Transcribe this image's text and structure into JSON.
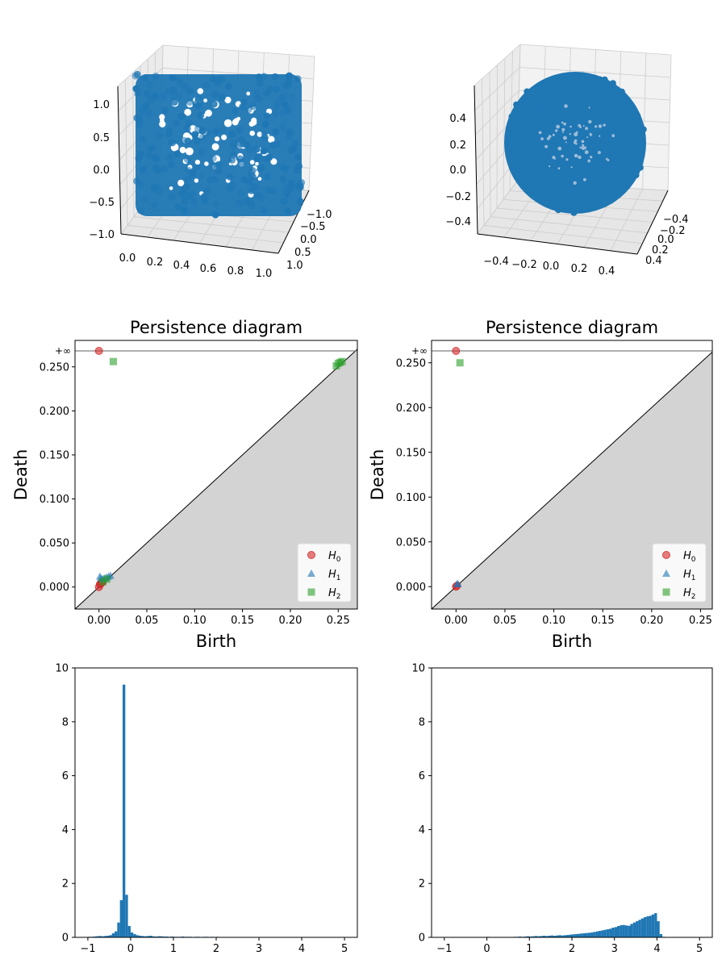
{
  "figure": {
    "colors": {
      "scatter": "#1f77b4",
      "h0": "#d62728",
      "h1": "#1f77b4",
      "h2": "#2ca02c",
      "fill": "#d3d3d3",
      "hist": "#1f77b4",
      "grid": "#cccccc",
      "pane": "#f2f2f2",
      "inf_line": "#808080"
    }
  },
  "chart_data": [
    {
      "type": "scatter",
      "subtype": "3d-scatter",
      "title": "",
      "description_shape": "cylinder",
      "x_ticks": [
        "0.0",
        "0.2",
        "0.4",
        "0.6",
        "0.8",
        "1.0"
      ],
      "y_ticks": [
        "−1.0",
        "−0.5",
        "0.0",
        "0.5",
        "1.0"
      ],
      "z_ticks": [
        "−1.0",
        "−0.5",
        "0.0",
        "0.5",
        "1.0"
      ],
      "xlim": [
        0,
        1
      ],
      "ylim": [
        -1,
        1
      ],
      "zlim": [
        -1,
        1
      ],
      "points": 2000
    },
    {
      "type": "scatter",
      "subtype": "3d-scatter",
      "title": "",
      "description_shape": "sphere",
      "x_ticks": [
        "−0.4",
        "−0.2",
        "0.0",
        "0.2",
        "0.4"
      ],
      "y_ticks": [
        "−0.4",
        "−0.2",
        "0.0",
        "0.2",
        "0.4"
      ],
      "z_ticks": [
        "−0.4",
        "−0.2",
        "0.0",
        "0.2",
        "0.4"
      ],
      "xlim": [
        -0.5,
        0.5
      ],
      "ylim": [
        -0.5,
        0.5
      ],
      "zlim": [
        -0.5,
        0.5
      ],
      "points": 2000
    },
    {
      "type": "scatter",
      "subtype": "persistence-diagram",
      "title": "Persistence diagram",
      "xlabel": "Birth",
      "ylabel": "Death",
      "xlim": [
        -0.025,
        0.27
      ],
      "ylim": [
        -0.025,
        0.28
      ],
      "inf_label": "+∞",
      "x_ticks": [
        "0.00",
        "0.05",
        "0.10",
        "0.15",
        "0.20",
        "0.25"
      ],
      "y_ticks": [
        "0.000",
        "0.050",
        "0.100",
        "0.150",
        "0.200",
        "0.250"
      ],
      "legend": [
        "H0",
        "H1",
        "H2"
      ],
      "legend_position": "lower-right",
      "series": [
        {
          "name": "H0",
          "points": [
            [
              0,
              "inf"
            ],
            [
              0,
              0
            ],
            [
              0.001,
              0.003
            ],
            [
              0.002,
              0.004
            ],
            [
              0.003,
              0.005
            ],
            [
              0.004,
              0.006
            ]
          ]
        },
        {
          "name": "H1",
          "points": [
            [
              0.001,
              0.012
            ],
            [
              0.002,
              0.01
            ],
            [
              0.004,
              0.009
            ],
            [
              0.006,
              0.01
            ],
            [
              0.008,
              0.011
            ],
            [
              0.01,
              0.012
            ],
            [
              0.012,
              0.013
            ]
          ]
        },
        {
          "name": "H2",
          "points": [
            [
              0.015,
              0.256
            ],
            [
              0.248,
              0.251
            ],
            [
              0.25,
              0.254
            ],
            [
              0.252,
              0.255
            ],
            [
              0.254,
              0.256
            ],
            [
              0.004,
              0.006
            ],
            [
              0.008,
              0.009
            ]
          ]
        }
      ]
    },
    {
      "type": "scatter",
      "subtype": "persistence-diagram",
      "title": "Persistence diagram",
      "xlabel": "Birth",
      "ylabel": "Death",
      "xlim": [
        -0.025,
        0.262
      ],
      "ylim": [
        -0.025,
        0.275
      ],
      "inf_label": "+∞",
      "x_ticks": [
        "0.00",
        "0.05",
        "0.10",
        "0.15",
        "0.20",
        "0.25"
      ],
      "y_ticks": [
        "0.000",
        "0.050",
        "0.100",
        "0.150",
        "0.200",
        "0.250"
      ],
      "legend": [
        "H0",
        "H1",
        "H2"
      ],
      "legend_position": "lower-right",
      "series": [
        {
          "name": "H0",
          "points": [
            [
              0,
              "inf"
            ],
            [
              0,
              0
            ],
            [
              0.001,
              0.001
            ]
          ]
        },
        {
          "name": "H1",
          "points": [
            [
              0.001,
              0.003
            ],
            [
              0.002,
              0.003
            ]
          ]
        },
        {
          "name": "H2",
          "points": [
            [
              0.004,
              0.25
            ]
          ]
        }
      ]
    },
    {
      "type": "bar",
      "subtype": "histogram",
      "title": "",
      "xlim": [
        -1.3,
        5.3
      ],
      "ylim": [
        0,
        10
      ],
      "x_ticks": [
        "−1",
        "0",
        "1",
        "2",
        "3",
        "4",
        "5"
      ],
      "y_ticks": [
        "0",
        "2",
        "4",
        "6",
        "8",
        "10"
      ],
      "bin_start": -1.0,
      "bin_width": 0.0625,
      "values": [
        0.02,
        0.02,
        0.03,
        0.04,
        0.05,
        0.04,
        0.05,
        0.06,
        0.08,
        0.15,
        0.22,
        0.55,
        1.38,
        9.38,
        1.58,
        0.42,
        0.18,
        0.12,
        0.08,
        0.06,
        0.05,
        0.04,
        0.05,
        0.06,
        0.04,
        0.03,
        0.04,
        0.04,
        0.03,
        0.03,
        0.02,
        0.03,
        0.02,
        0.02,
        0.02,
        0.03,
        0.02,
        0.02,
        0.02,
        0.01,
        0.02,
        0.02,
        0.01,
        0.02,
        0.02,
        0.01,
        0.02,
        0.01,
        0.02,
        0.01,
        0.01,
        0.01,
        0,
        0.01,
        0,
        0.01,
        0,
        0,
        0,
        0,
        0,
        0,
        0,
        0,
        0,
        0,
        0,
        0,
        0,
        0,
        0,
        0,
        0,
        0,
        0,
        0,
        0,
        0,
        0,
        0,
        0,
        0,
        0,
        0,
        0,
        0,
        0,
        0,
        0,
        0,
        0,
        0,
        0,
        0,
        0,
        0
      ]
    },
    {
      "type": "bar",
      "subtype": "histogram",
      "title": "",
      "xlim": [
        -1.3,
        5.3
      ],
      "ylim": [
        0,
        10
      ],
      "x_ticks": [
        "−1",
        "0",
        "1",
        "2",
        "3",
        "4",
        "5"
      ],
      "y_ticks": [
        "0",
        "2",
        "4",
        "6",
        "8",
        "10"
      ],
      "bin_start": 0.0,
      "bin_width": 0.0625,
      "values": [
        0.02,
        0,
        0,
        0,
        0,
        0,
        0,
        0,
        0,
        0,
        0.02,
        0.02,
        0.03,
        0.02,
        0.03,
        0.04,
        0.03,
        0.04,
        0.05,
        0.04,
        0.05,
        0.06,
        0.05,
        0.06,
        0.07,
        0.06,
        0.07,
        0.08,
        0.07,
        0.08,
        0.09,
        0.1,
        0.11,
        0.12,
        0.13,
        0.14,
        0.15,
        0.16,
        0.17,
        0.18,
        0.2,
        0.22,
        0.24,
        0.26,
        0.28,
        0.3,
        0.32,
        0.36,
        0.38,
        0.42,
        0.45,
        0.46,
        0.44,
        0.43,
        0.5,
        0.55,
        0.6,
        0.65,
        0.7,
        0.75,
        0.78,
        0.8,
        0.85,
        0.9,
        0.6,
        0.12,
        0.02
      ]
    }
  ]
}
